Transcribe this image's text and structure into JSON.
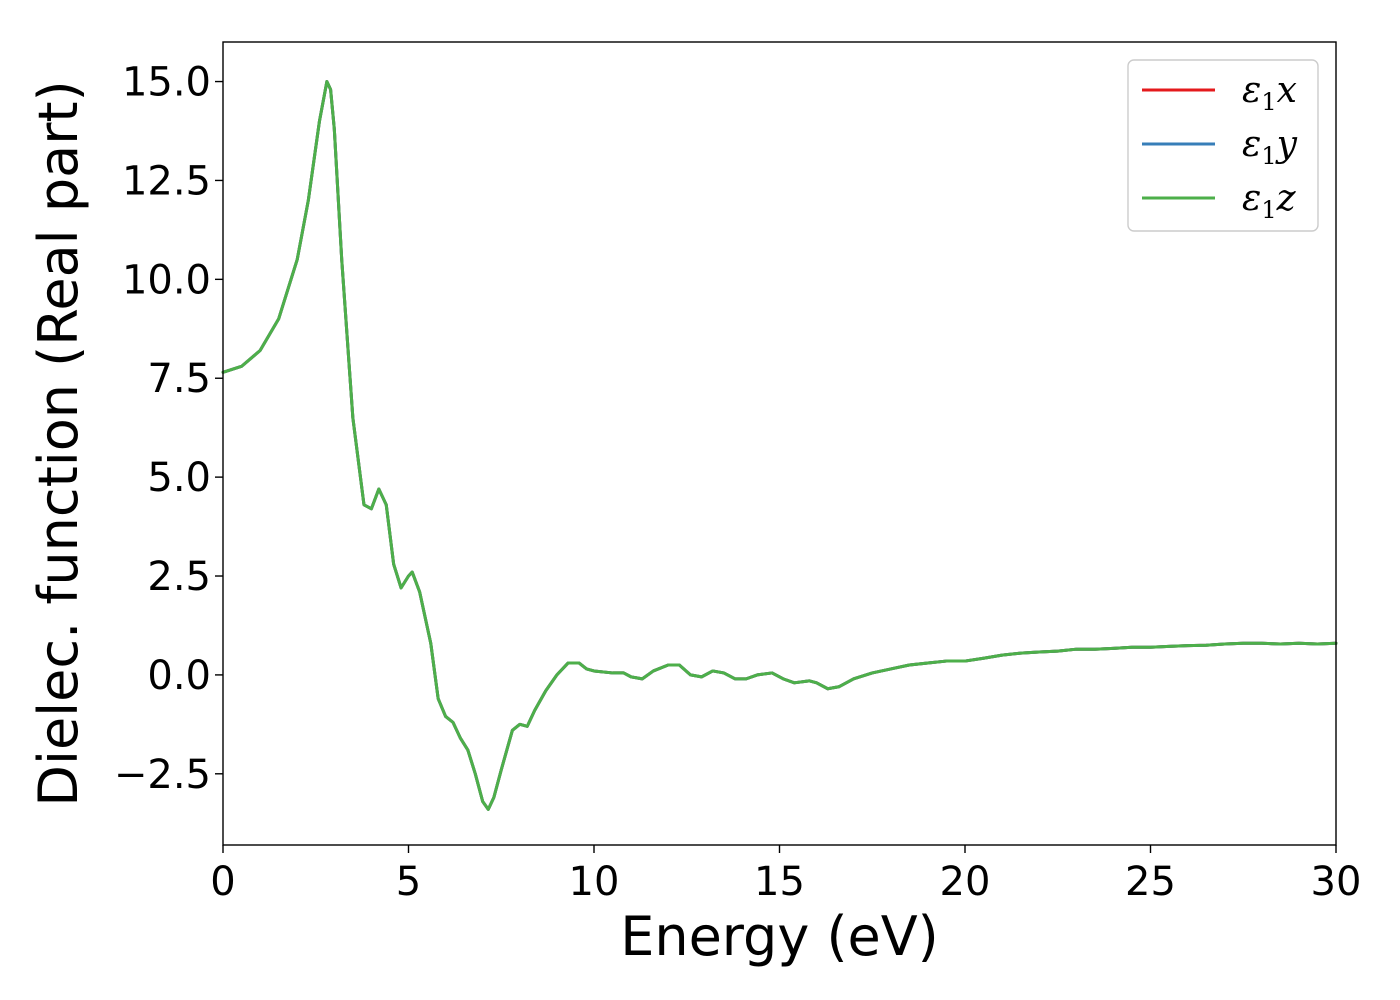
{
  "chart_data": {
    "type": "line",
    "title": "",
    "xlabel": "Energy (eV)",
    "ylabel": "Dielec. function (Real part)",
    "xlim": [
      0,
      30
    ],
    "ylim": [
      -4.3,
      16.0
    ],
    "xticks": [
      0,
      5,
      10,
      15,
      20,
      25,
      30
    ],
    "xtick_labels": [
      "0",
      "5",
      "10",
      "15",
      "20",
      "25",
      "30"
    ],
    "yticks": [
      -2.5,
      0.0,
      2.5,
      5.0,
      7.5,
      10.0,
      12.5,
      15.0
    ],
    "ytick_labels": [
      "−2.5",
      "0.0",
      "2.5",
      "5.0",
      "7.5",
      "10.0",
      "12.5",
      "15.0"
    ],
    "grid": false,
    "legend": "top-right",
    "x": [
      0,
      0.5,
      1.0,
      1.5,
      2.0,
      2.3,
      2.6,
      2.8,
      2.9,
      3.0,
      3.2,
      3.5,
      3.8,
      4.0,
      4.2,
      4.4,
      4.6,
      4.8,
      5.0,
      5.1,
      5.3,
      5.6,
      5.8,
      6.0,
      6.2,
      6.4,
      6.6,
      6.8,
      7.0,
      7.15,
      7.3,
      7.5,
      7.8,
      8.0,
      8.2,
      8.4,
      8.7,
      9.0,
      9.3,
      9.6,
      9.8,
      10.0,
      10.5,
      10.8,
      11.0,
      11.3,
      11.6,
      12.0,
      12.3,
      12.6,
      12.9,
      13.2,
      13.5,
      13.8,
      14.1,
      14.4,
      14.8,
      15.1,
      15.4,
      15.8,
      16.0,
      16.3,
      16.6,
      17.0,
      17.5,
      18.0,
      18.5,
      19.0,
      19.5,
      20.0,
      20.5,
      21.0,
      21.5,
      22.0,
      22.5,
      23.0,
      23.5,
      24.0,
      24.5,
      25.0,
      25.5,
      26.0,
      26.5,
      27.0,
      27.5,
      28.0,
      28.5,
      29.0,
      29.5,
      30.0
    ],
    "series": [
      {
        "name": "x",
        "color": "#e41a1c",
        "values": [
          7.65,
          7.8,
          8.2,
          9.0,
          10.5,
          12.0,
          14.0,
          15.0,
          14.8,
          13.8,
          10.5,
          6.5,
          4.3,
          4.2,
          4.7,
          4.3,
          2.8,
          2.2,
          2.5,
          2.6,
          2.1,
          0.8,
          -0.6,
          -1.05,
          -1.2,
          -1.6,
          -1.9,
          -2.5,
          -3.2,
          -3.4,
          -3.1,
          -2.4,
          -1.4,
          -1.25,
          -1.3,
          -0.9,
          -0.4,
          0.0,
          0.3,
          0.3,
          0.15,
          0.1,
          0.05,
          0.05,
          -0.05,
          -0.1,
          0.1,
          0.25,
          0.25,
          0.0,
          -0.05,
          0.1,
          0.05,
          -0.1,
          -0.1,
          0.0,
          0.05,
          -0.1,
          -0.2,
          -0.15,
          -0.2,
          -0.35,
          -0.3,
          -0.1,
          0.05,
          0.15,
          0.25,
          0.3,
          0.35,
          0.35,
          0.42,
          0.5,
          0.55,
          0.58,
          0.6,
          0.65,
          0.65,
          0.67,
          0.7,
          0.7,
          0.72,
          0.74,
          0.75,
          0.78,
          0.8,
          0.8,
          0.78,
          0.8,
          0.78,
          0.8
        ]
      },
      {
        "name": "y",
        "color": "#377eb8",
        "values": [
          7.65,
          7.8,
          8.2,
          9.0,
          10.5,
          12.0,
          14.0,
          15.0,
          14.8,
          13.8,
          10.5,
          6.5,
          4.3,
          4.2,
          4.7,
          4.3,
          2.8,
          2.2,
          2.5,
          2.6,
          2.1,
          0.8,
          -0.6,
          -1.05,
          -1.2,
          -1.6,
          -1.9,
          -2.5,
          -3.2,
          -3.4,
          -3.1,
          -2.4,
          -1.4,
          -1.25,
          -1.3,
          -0.9,
          -0.4,
          0.0,
          0.3,
          0.3,
          0.15,
          0.1,
          0.05,
          0.05,
          -0.05,
          -0.1,
          0.1,
          0.25,
          0.25,
          0.0,
          -0.05,
          0.1,
          0.05,
          -0.1,
          -0.1,
          0.0,
          0.05,
          -0.1,
          -0.2,
          -0.15,
          -0.2,
          -0.35,
          -0.3,
          -0.1,
          0.05,
          0.15,
          0.25,
          0.3,
          0.35,
          0.35,
          0.42,
          0.5,
          0.55,
          0.58,
          0.6,
          0.65,
          0.65,
          0.67,
          0.7,
          0.7,
          0.72,
          0.74,
          0.75,
          0.78,
          0.8,
          0.8,
          0.78,
          0.8,
          0.78,
          0.8
        ]
      },
      {
        "name": "z",
        "color": "#4daf4a",
        "values": [
          7.65,
          7.8,
          8.2,
          9.0,
          10.5,
          12.0,
          14.0,
          15.0,
          14.8,
          13.8,
          10.5,
          6.5,
          4.3,
          4.2,
          4.7,
          4.3,
          2.8,
          2.2,
          2.5,
          2.6,
          2.1,
          0.8,
          -0.6,
          -1.05,
          -1.2,
          -1.6,
          -1.9,
          -2.5,
          -3.2,
          -3.4,
          -3.1,
          -2.4,
          -1.4,
          -1.25,
          -1.3,
          -0.9,
          -0.4,
          0.0,
          0.3,
          0.3,
          0.15,
          0.1,
          0.05,
          0.05,
          -0.05,
          -0.1,
          0.1,
          0.25,
          0.25,
          0.0,
          -0.05,
          0.1,
          0.05,
          -0.1,
          -0.1,
          0.0,
          0.05,
          -0.1,
          -0.2,
          -0.15,
          -0.2,
          -0.35,
          -0.3,
          -0.1,
          0.05,
          0.15,
          0.25,
          0.3,
          0.35,
          0.35,
          0.42,
          0.5,
          0.55,
          0.58,
          0.6,
          0.65,
          0.65,
          0.67,
          0.7,
          0.7,
          0.72,
          0.74,
          0.75,
          0.78,
          0.8,
          0.8,
          0.78,
          0.8,
          0.78,
          0.8
        ]
      }
    ],
    "legend_entries": [
      {
        "symbol": "ε",
        "sub": "1",
        "axis": "x",
        "color": "#e41a1c"
      },
      {
        "symbol": "ε",
        "sub": "1",
        "axis": "y",
        "color": "#377eb8"
      },
      {
        "symbol": "ε",
        "sub": "1",
        "axis": "z",
        "color": "#4daf4a"
      }
    ]
  }
}
